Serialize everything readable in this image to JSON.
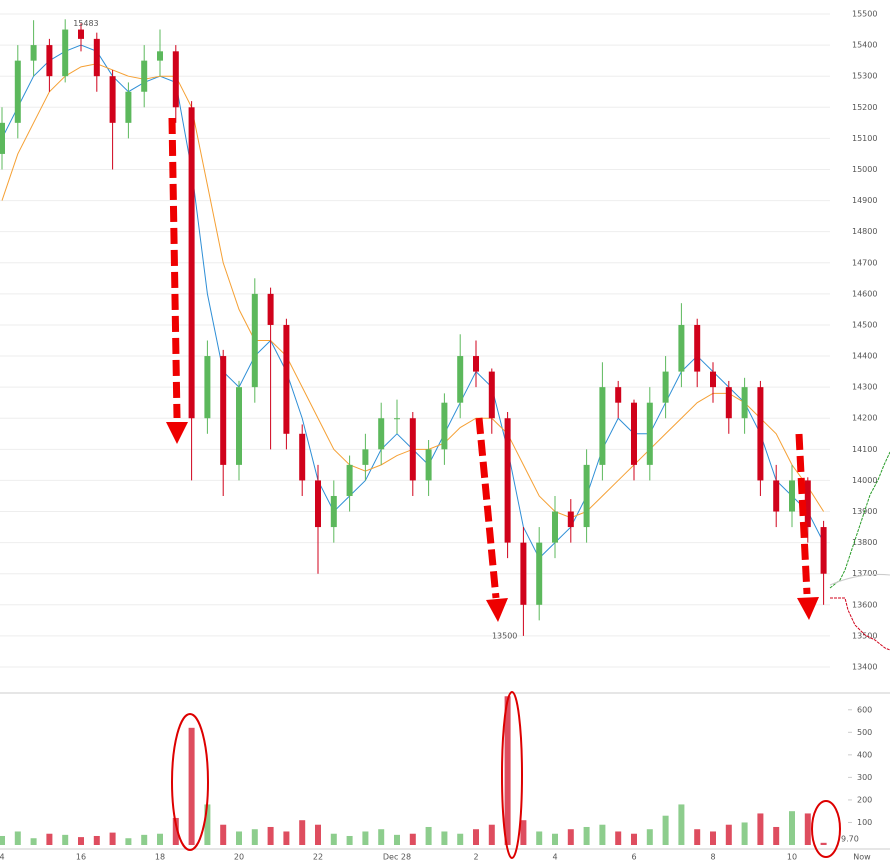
{
  "chart_data": {
    "type": "candlestick",
    "categories": [
      "4",
      null,
      null,
      null,
      null,
      "16",
      null,
      null,
      null,
      null,
      "18",
      null,
      null,
      null,
      null,
      "20",
      null,
      null,
      null,
      null,
      "22",
      null,
      null,
      null,
      null,
      "Dec 28",
      null,
      null,
      null,
      null,
      "2",
      null,
      null,
      null,
      null,
      "4",
      null,
      null,
      null,
      null,
      "6",
      null,
      null,
      null,
      null,
      "8",
      null,
      null,
      null,
      null,
      "10",
      null,
      null
    ],
    "x_end_label": "Now",
    "open": [
      15050,
      15150,
      15350,
      15400,
      15300,
      15450,
      15420,
      15300,
      15150,
      15250,
      15350,
      15380,
      15200,
      14200,
      14400,
      14050,
      14300,
      14600,
      14500,
      14150,
      14000,
      13850,
      13950,
      14050,
      14100,
      14200,
      14200,
      14000,
      14100,
      14250,
      14400,
      14350,
      14200,
      13800,
      13600,
      13800,
      13900,
      13850,
      14050,
      14300,
      14250,
      14050,
      14250,
      14350,
      14500,
      14350,
      14300,
      14200,
      14300,
      14000,
      13900,
      14000,
      13850
    ],
    "high": [
      15200,
      15400,
      15480,
      15420,
      15483,
      15470,
      15440,
      15320,
      15280,
      15400,
      15450,
      15400,
      15220,
      14450,
      14420,
      14320,
      14650,
      14620,
      14520,
      14180,
      14050,
      14000,
      14080,
      14150,
      14250,
      14260,
      14220,
      14130,
      14280,
      14470,
      14450,
      14360,
      14220,
      13850,
      13850,
      13950,
      13940,
      14100,
      14380,
      14320,
      14260,
      14300,
      14400,
      14570,
      14520,
      14380,
      14320,
      14330,
      14320,
      14050,
      14050,
      14010,
      13870
    ],
    "low": [
      15000,
      15100,
      15300,
      15250,
      15280,
      15380,
      15250,
      15000,
      15100,
      15200,
      15300,
      15150,
      14000,
      14150,
      13950,
      14000,
      14250,
      14100,
      14100,
      13950,
      13700,
      13800,
      13900,
      14000,
      14050,
      14150,
      13950,
      13950,
      14050,
      14200,
      14300,
      14150,
      13750,
      13500,
      13550,
      13750,
      13800,
      13800,
      14000,
      14200,
      14000,
      14000,
      14200,
      14300,
      14300,
      14250,
      14150,
      14150,
      13950,
      13850,
      13850,
      13800,
      13600
    ],
    "close": [
      15150,
      15350,
      15400,
      15300,
      15450,
      15420,
      15300,
      15150,
      15250,
      15350,
      15380,
      15200,
      14200,
      14400,
      14050,
      14300,
      14600,
      14500,
      14150,
      14000,
      13850,
      13950,
      14050,
      14100,
      14200,
      14200,
      14000,
      14100,
      14250,
      14400,
      14350,
      14200,
      13800,
      13600,
      13800,
      13900,
      13850,
      14050,
      14300,
      14250,
      14050,
      14250,
      14350,
      14500,
      14350,
      14300,
      14200,
      14300,
      14000,
      13900,
      14000,
      13850,
      13700
    ],
    "up_color": "#5cb85c",
    "down_color": "#d0021b",
    "lines": [
      {
        "color": "#2f8fd6",
        "values": [
          15100,
          15200,
          15300,
          15350,
          15380,
          15400,
          15380,
          15300,
          15250,
          15280,
          15300,
          15280,
          15000,
          14600,
          14350,
          14300,
          14400,
          14450,
          14350,
          14200,
          14000,
          13900,
          13950,
          14000,
          14100,
          14150,
          14100,
          14050,
          14150,
          14250,
          14350,
          14300,
          14100,
          13850,
          13750,
          13800,
          13850,
          13950,
          14100,
          14200,
          14150,
          14150,
          14250,
          14350,
          14400,
          14350,
          14300,
          14250,
          14150,
          14000,
          13950,
          13900,
          13800
        ]
      },
      {
        "color": "#f5a034",
        "values": [
          14900,
          15050,
          15150,
          15250,
          15300,
          15330,
          15340,
          15320,
          15300,
          15290,
          15300,
          15300,
          15200,
          14950,
          14700,
          14550,
          14450,
          14450,
          14400,
          14300,
          14200,
          14100,
          14050,
          14030,
          14050,
          14080,
          14100,
          14100,
          14120,
          14170,
          14200,
          14200,
          14150,
          14050,
          13950,
          13900,
          13880,
          13900,
          13950,
          14000,
          14050,
          14100,
          14150,
          14200,
          14250,
          14280,
          14280,
          14250,
          14200,
          14150,
          14050,
          13980,
          13900
        ]
      }
    ],
    "ylim": [
      13400,
      15500
    ],
    "yticks": [
      13400,
      13500,
      13600,
      13700,
      13800,
      13900,
      14000,
      14100,
      14200,
      14300,
      14400,
      14500,
      14600,
      14700,
      14800,
      14900,
      15000,
      15100,
      15200,
      15300,
      15400,
      15500
    ],
    "grid": true,
    "annotations": {
      "high_label": "15483",
      "low_label": "13500",
      "volume_label": "9.70"
    },
    "volume": {
      "values": [
        40,
        60,
        30,
        50,
        45,
        35,
        40,
        55,
        30,
        45,
        50,
        120,
        520,
        180,
        90,
        60,
        70,
        80,
        60,
        110,
        90,
        50,
        40,
        60,
        70,
        45,
        50,
        80,
        60,
        50,
        70,
        90,
        660,
        110,
        60,
        50,
        70,
        80,
        90,
        60,
        50,
        70,
        130,
        180,
        70,
        60,
        90,
        100,
        140,
        80,
        150,
        140,
        9.7
      ],
      "ylim": [
        0,
        670
      ],
      "yticks": [
        100,
        200,
        300,
        400,
        500,
        600
      ]
    }
  }
}
